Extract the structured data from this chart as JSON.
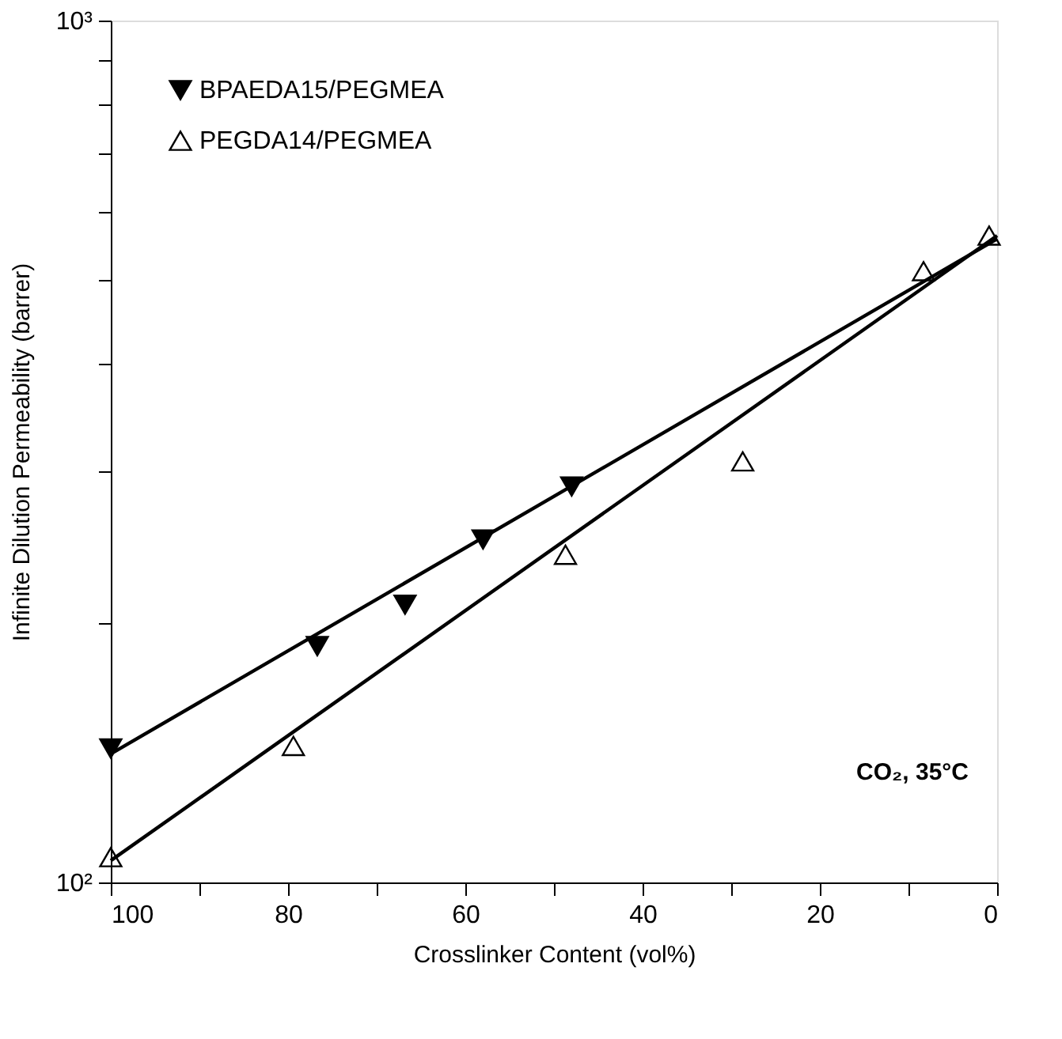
{
  "chart_data": {
    "type": "scatter",
    "xlabel": "Crosslinker Content (vol%)",
    "ylabel": "Infinite Dilution Permeability (barrer)",
    "series": [
      {
        "name": "BPAEDA15/PEGMEA",
        "color": "#000000",
        "marker": "triangle-down",
        "x": [
          100,
          76.7,
          66.8,
          58.0,
          48.0
        ],
        "values": [
          143,
          188,
          210,
          250,
          288
        ]
      },
      {
        "name": "PEGDA14/PEGMEA",
        "color": "#000000",
        "marker": "triangle",
        "x": [
          100,
          79.4,
          48.7,
          28.7,
          8.3,
          0.9
        ],
        "values": [
          107,
          144,
          240,
          308,
          512,
          563
        ]
      },
      {
        "type": "line",
        "color": "#000000",
        "x": [
          100,
          0
        ],
        "values": [
          141,
          558
        ]
      },
      {
        "type": "line",
        "color": "#000000",
        "x": [
          100,
          0
        ],
        "values": [
          106,
          563
        ]
      }
    ],
    "xlim": [
      100,
      0
    ],
    "xticks": [
      100,
      {
        "value": 90,
        "label": null
      },
      80,
      {
        "value": 70,
        "label": null
      },
      60,
      {
        "value": 50,
        "label": null
      },
      40,
      {
        "value": 30,
        "label": null
      },
      20,
      {
        "value": 10,
        "label": null
      },
      0
    ],
    "ylim": [
      100,
      1000
    ],
    "log": "y",
    "yticks": [
      {
        "value": 100,
        "label": "10²"
      },
      {
        "value": 200,
        "label": null
      },
      {
        "value": 300,
        "label": null
      },
      {
        "value": 400,
        "label": null
      },
      {
        "value": 500,
        "label": null
      },
      {
        "value": 600,
        "label": null
      },
      {
        "value": 700,
        "label": null
      },
      {
        "value": 800,
        "label": null
      },
      {
        "value": 900,
        "label": null
      },
      {
        "value": 1000,
        "label": "10³"
      }
    ],
    "legend": "top left",
    "grid": false,
    "annotations": [
      "CO₂, 35°C"
    ]
  }
}
